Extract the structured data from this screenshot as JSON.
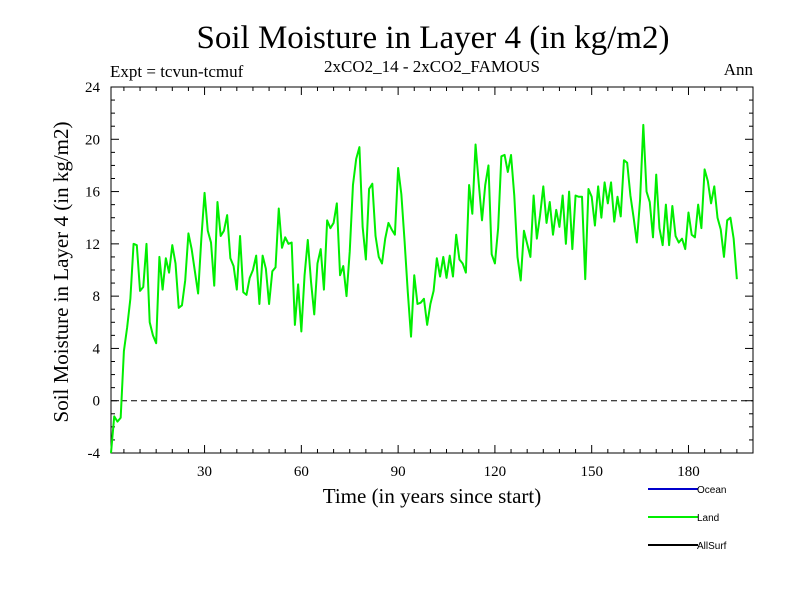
{
  "chart_data": {
    "type": "line",
    "title": "Soil Moisture in Layer 4 (in kg/m2)",
    "subtitle_left": "Expt = tcvun-tcmuf",
    "subtitle_center": "2xCO2_14 - 2xCO2_FAMOUS",
    "subtitle_right": "Ann",
    "xlabel": "Time (in years since start)",
    "ylabel": "Soil Moisture in Layer 4 (in kg/m2)",
    "xlim": [
      1,
      200
    ],
    "ylim": [
      -4,
      24
    ],
    "xticks": [
      30,
      60,
      90,
      120,
      150,
      180
    ],
    "yticks": [
      -4,
      0,
      4,
      8,
      12,
      16,
      20,
      24
    ],
    "reference_line": 0,
    "legend_position": "bottom-right",
    "series": [
      {
        "name": "Ocean",
        "color": "#0000cc",
        "values": []
      },
      {
        "name": "Land",
        "color": "#00ee00",
        "x_start": 1,
        "values": [
          -4.0,
          -1.2,
          -1.6,
          -1.3,
          3.8,
          5.6,
          7.8,
          12.0,
          11.9,
          8.4,
          8.7,
          12.0,
          6.0,
          5.0,
          4.4,
          11.0,
          8.5,
          10.9,
          9.8,
          11.9,
          10.5,
          7.1,
          7.3,
          9.2,
          12.8,
          11.6,
          9.9,
          8.2,
          12.4,
          15.9,
          13.0,
          12.1,
          8.8,
          15.2,
          12.6,
          13.0,
          14.2,
          10.9,
          10.3,
          8.5,
          12.6,
          8.3,
          8.1,
          9.4,
          10.0,
          11.1,
          7.4,
          11.1,
          10.1,
          7.4,
          9.9,
          10.2,
          14.7,
          11.7,
          12.5,
          12.0,
          12.1,
          5.8,
          8.9,
          5.3,
          9.6,
          12.3,
          9.1,
          6.6,
          10.5,
          11.6,
          8.5,
          13.8,
          13.2,
          13.6,
          15.1,
          9.6,
          10.3,
          8.0,
          11.4,
          16.5,
          18.5,
          19.4,
          13.3,
          10.8,
          16.2,
          16.6,
          12.6,
          11.0,
          10.5,
          12.4,
          13.6,
          13.1,
          12.7,
          17.8,
          15.8,
          12.2,
          8.3,
          4.9,
          9.6,
          7.4,
          7.5,
          7.8,
          5.8,
          7.4,
          8.4,
          10.9,
          9.5,
          11.0,
          9.4,
          11.1,
          9.5,
          12.7,
          10.8,
          10.5,
          9.8,
          16.5,
          14.3,
          19.6,
          16.6,
          13.8,
          16.5,
          18.0,
          11.2,
          10.5,
          13.2,
          18.7,
          18.8,
          17.5,
          18.8,
          15.7,
          11.0,
          9.2,
          13.0,
          12.0,
          11.0,
          15.7,
          12.4,
          14.2,
          16.4,
          13.6,
          15.2,
          12.7,
          14.6,
          13.3,
          15.7,
          12.0,
          16.0,
          11.6,
          15.7,
          15.6,
          15.6,
          9.3,
          16.2,
          15.6,
          13.4,
          16.4,
          14.0,
          16.7,
          15.1,
          16.7,
          13.7,
          15.6,
          14.1,
          18.4,
          18.2,
          15.7,
          14.0,
          12.1,
          15.4,
          21.1,
          16.0,
          15.2,
          12.5,
          17.3,
          13.2,
          11.9,
          15.0,
          11.9,
          14.9,
          12.6,
          12.1,
          12.4,
          11.6,
          14.4,
          12.7,
          12.5,
          15.0,
          13.2,
          17.7,
          16.8,
          15.1,
          16.4,
          14.0,
          13.1,
          11.0,
          13.8,
          14.0,
          12.4,
          9.3
        ]
      },
      {
        "name": "AllSurf",
        "color": "#000000",
        "values": []
      }
    ]
  }
}
